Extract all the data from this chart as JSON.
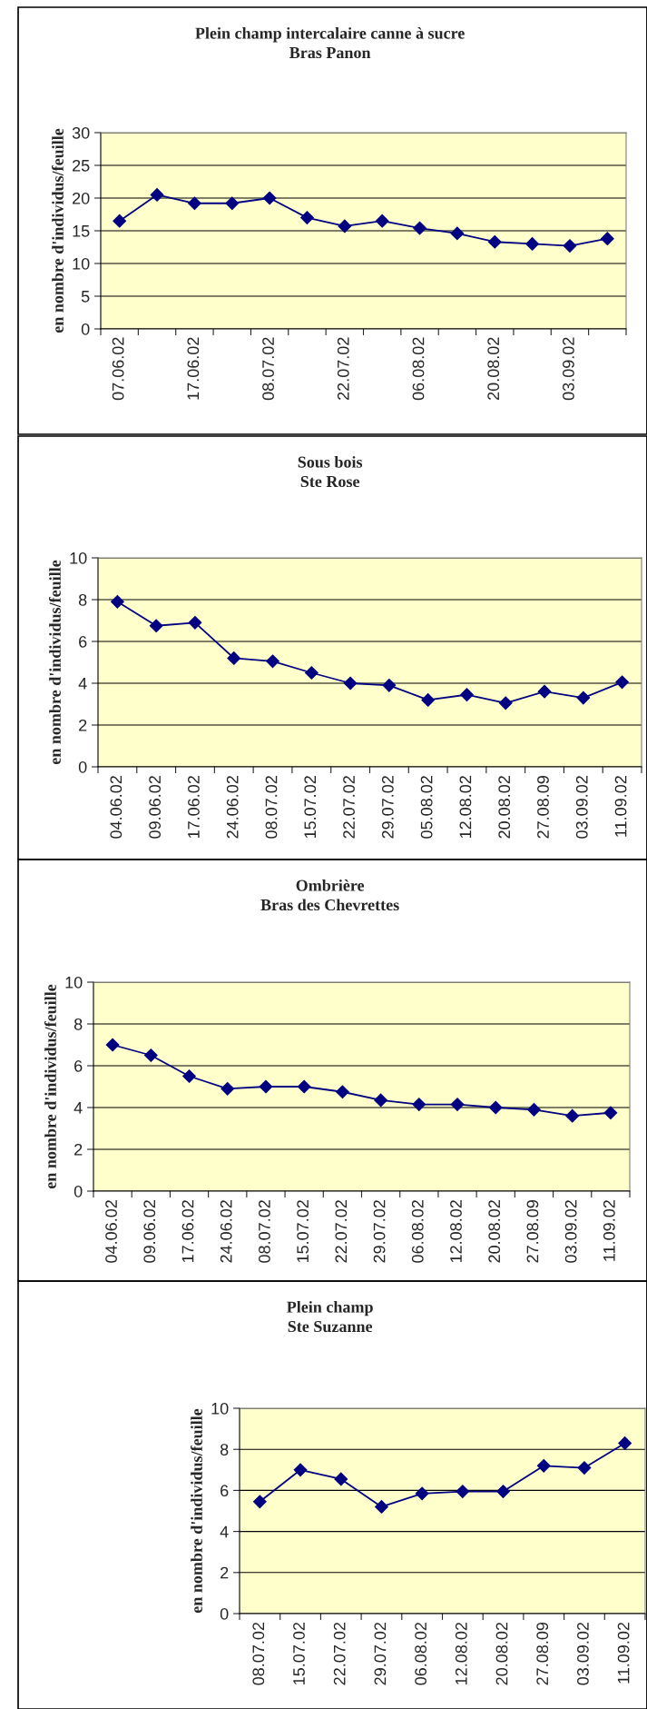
{
  "chart_data": [
    {
      "type": "line",
      "title": "Plein champ intercalaire canne à sucre\nBras Panon",
      "ylabel": "en nombre d'individus/feuille",
      "categories": [
        "07.06.02",
        null,
        "17.06.02",
        null,
        "08.07.02",
        null,
        "22.07.02",
        null,
        "06.08.02",
        null,
        "20.08.02",
        null,
        "03.09.02",
        null
      ],
      "series": [
        {
          "color": "#000080",
          "values": [
            16.5,
            20.5,
            19.2,
            19.2,
            20,
            17,
            15.7,
            16.5,
            15.4,
            14.6,
            13.3,
            13,
            12.7,
            13.8
          ]
        }
      ],
      "ylim": [
        0,
        30
      ],
      "yticks": [
        0,
        5,
        10,
        15,
        20,
        25,
        30
      ],
      "grid": "y",
      "marker": "diamond",
      "line_style": "solid"
    },
    {
      "type": "line",
      "title": "Sous bois\nSte Rose",
      "ylabel": "en nombre d'individus/feuille",
      "categories": [
        "04.06.02",
        "09.06.02",
        "17.06.02",
        "24.06.02",
        "08.07.02",
        "15.07.02",
        "22.07.02",
        "29.07.02",
        "05.08.02",
        "12.08.02",
        "20.08.02",
        "27.08.09",
        "03.09.02",
        "11.09.02"
      ],
      "series": [
        {
          "color": "#000080",
          "values": [
            7.9,
            6.75,
            6.9,
            5.2,
            5.05,
            4.5,
            4.0,
            3.9,
            3.2,
            3.45,
            3.05,
            3.6,
            3.3,
            4.05
          ]
        }
      ],
      "ylim": [
        0,
        10
      ],
      "yticks": [
        0,
        2,
        4,
        6,
        8,
        10
      ],
      "grid": "y",
      "marker": "diamond",
      "line_style": "solid"
    },
    {
      "type": "line",
      "title": "Ombrière\nBras des Chevrettes",
      "ylabel": "en nombre d'individus/feuille",
      "categories": [
        "04.06.02",
        "09.06.02",
        "17.06.02",
        "24.06.02",
        "08.07.02",
        "15.07.02",
        "22.07.02",
        "29.07.02",
        "06.08.02",
        "12.08.02",
        "20.08.02",
        "27.08.09",
        "03.09.02",
        "11.09.02"
      ],
      "series": [
        {
          "color": "#000080",
          "values": [
            7.0,
            6.5,
            5.5,
            4.9,
            5.0,
            5.0,
            4.75,
            4.35,
            4.15,
            4.15,
            4.0,
            3.9,
            3.6,
            3.75
          ]
        }
      ],
      "ylim": [
        0,
        10
      ],
      "yticks": [
        0,
        2,
        4,
        6,
        8,
        10
      ],
      "grid": "y",
      "marker": "diamond",
      "line_style": "solid"
    },
    {
      "type": "line",
      "title": "Plein champ\nSte Suzanne",
      "ylabel": "en nombre d'individus/feuille",
      "categories": [
        "08.07.02",
        "15.07.02",
        "22.07.02",
        "29.07.02",
        "06.08.02",
        "12.08.02",
        "20.08.02",
        "27.08.09",
        "03.09.02",
        "11.09.02"
      ],
      "series": [
        {
          "color": "#000080",
          "values": [
            5.45,
            7.0,
            6.55,
            5.2,
            5.85,
            5.95,
            5.95,
            7.2,
            7.1,
            8.3
          ]
        }
      ],
      "ylim": [
        0,
        10
      ],
      "yticks": [
        0,
        2,
        4,
        6,
        8,
        10
      ],
      "grid": "y",
      "marker": "diamond",
      "line_style": "solid"
    }
  ]
}
